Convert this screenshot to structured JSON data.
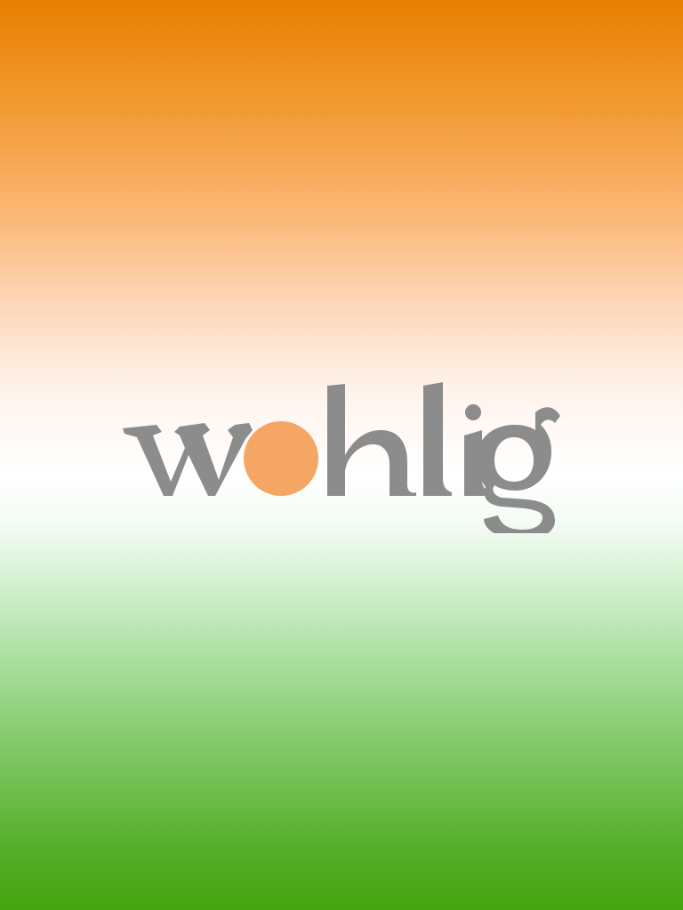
{
  "splash": {
    "logo_text": "wohlig",
    "colors": {
      "saffron": "#e87f00",
      "white": "#ffffff",
      "green": "#45a40d",
      "logo_gray": "#8c8c8c",
      "logo_dot": "#f6a664"
    }
  }
}
